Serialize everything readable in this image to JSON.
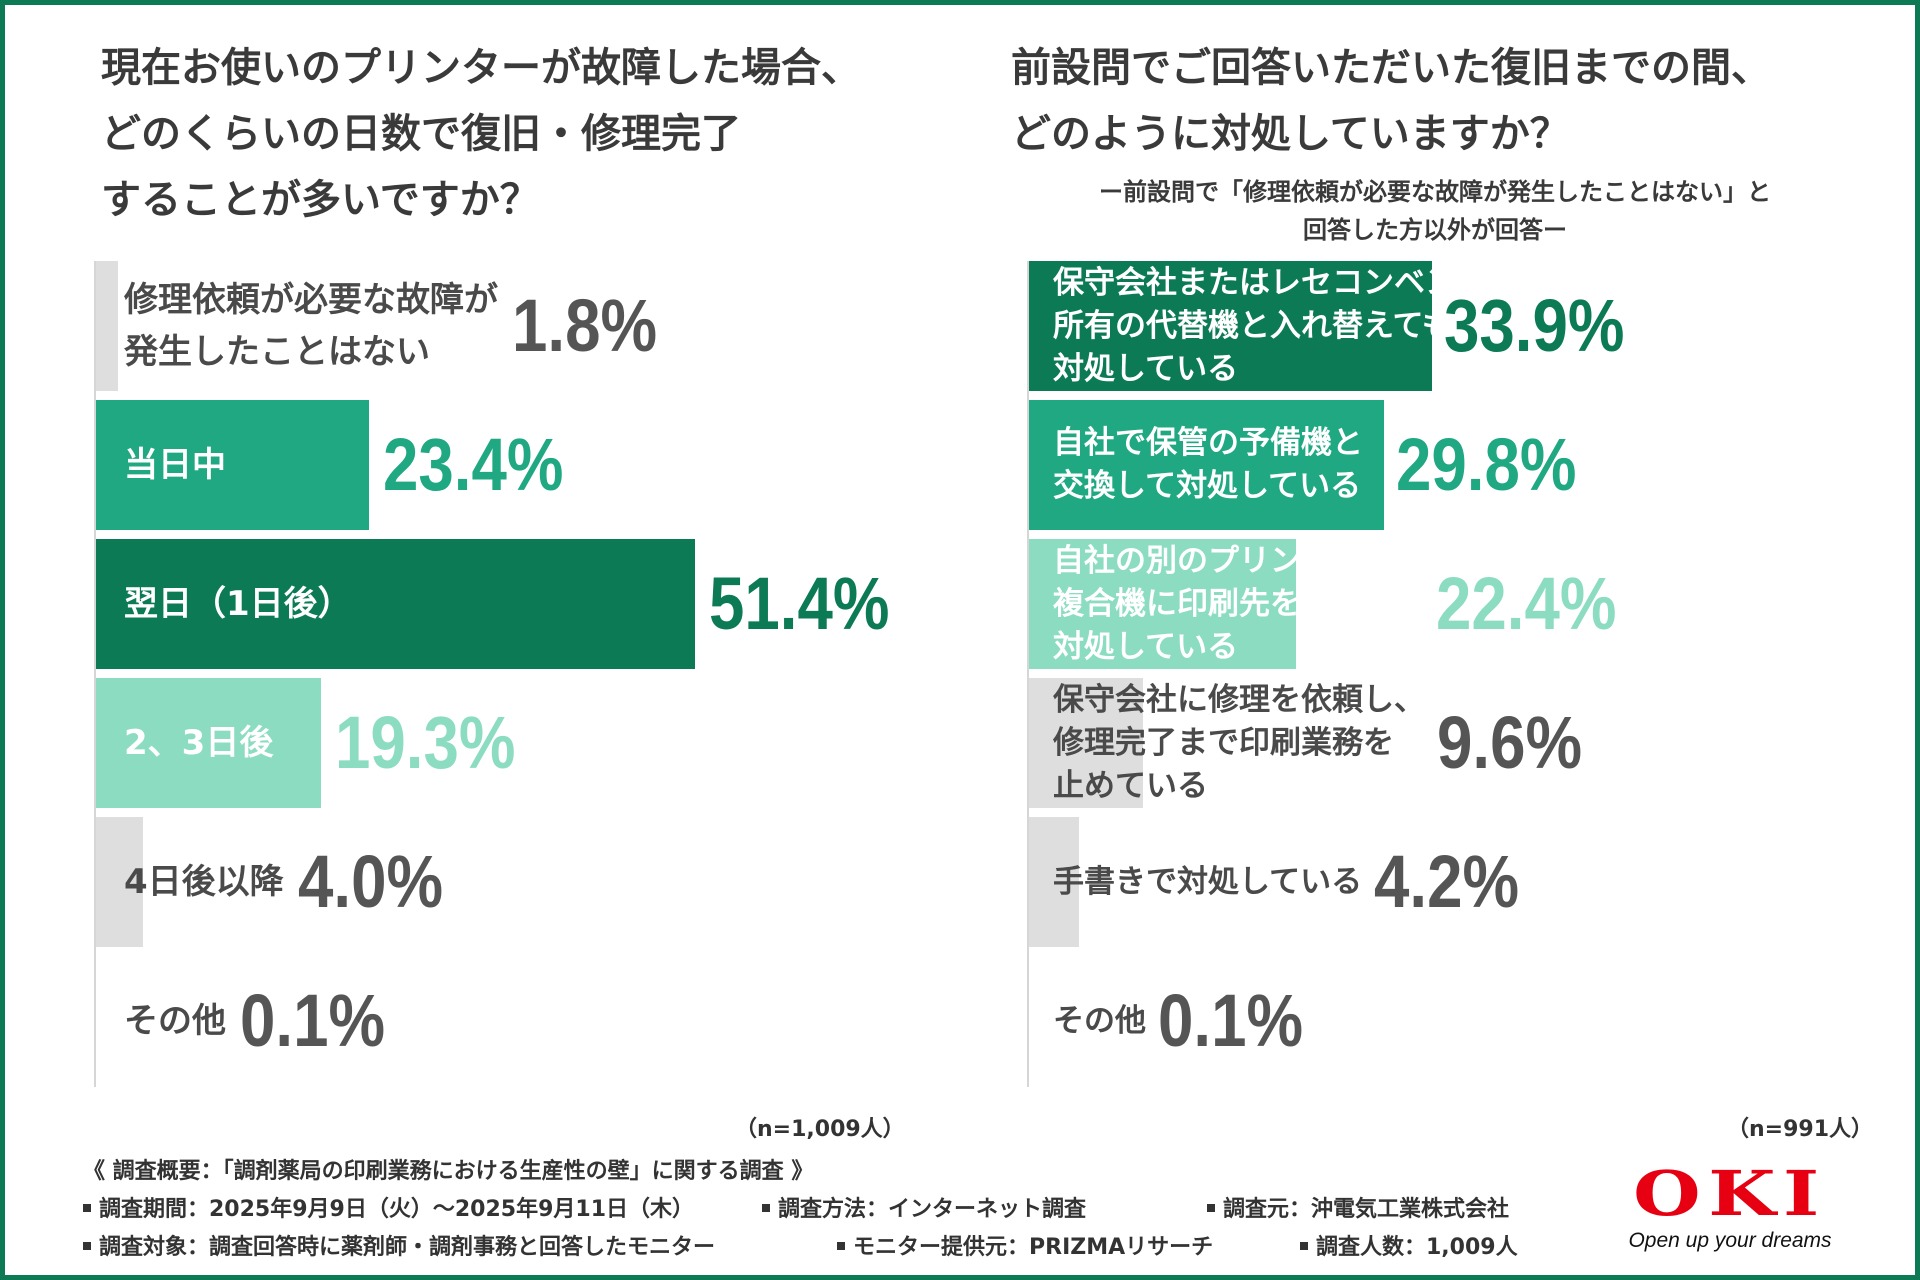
{
  "colors": {
    "dark_green": "#0b7a55",
    "mid_green": "#1fa882",
    "light_green": "#8cdcc2",
    "gray": "#dedede",
    "label_dark": "#4a4a4a",
    "pct_gray": "#555555",
    "logo_red": "#e60012"
  },
  "chart_data": [
    {
      "type": "bar",
      "orientation": "horizontal",
      "title": [
        "現在お使いのプリンターが故障した場合、",
        "どのくらいの日数で復旧・修理完了",
        "することが多いですか？"
      ],
      "categories": [
        [
          "修理依頼が必要な故障が",
          "発生したことはない"
        ],
        [
          "当日中"
        ],
        [
          "翌日（1日後）"
        ],
        [
          "2、3日後"
        ],
        [
          "4日後以降"
        ],
        [
          "その他"
        ]
      ],
      "values": [
        1.8,
        23.4,
        51.4,
        19.3,
        4.0,
        0.1
      ],
      "value_labels": [
        "1.8%",
        "23.4%",
        "51.4%",
        "19.3%",
        "4.0%",
        "0.1%"
      ],
      "styles": [
        "gray",
        "mid",
        "dark",
        "light",
        "gray",
        "gray"
      ],
      "xlim": [
        0,
        60
      ],
      "n": "（n=1,009人）"
    },
    {
      "type": "bar",
      "orientation": "horizontal",
      "title": [
        "前設問でご回答いただいた復旧までの間、",
        "どのように対処していますか？"
      ],
      "subtitle": [
        "ー前設問で「修理依頼が必要な故障が発生したことはない」と",
        "回答した方以外が回答ー"
      ],
      "categories": [
        [
          "保守会社またはレセコンベンダー",
          "所有の代替機と入れ替えてもらい",
          "対処している"
        ],
        [
          "自社で保管の予備機と",
          "交換して対処している"
        ],
        [
          "自社の別のプリンターや",
          "複合機に印刷先を変更して",
          "対処している"
        ],
        [
          "保守会社に修理を依頼し、",
          "修理完了まで印刷業務を",
          "止めている"
        ],
        [
          "手書きで対処している"
        ],
        [
          "その他"
        ]
      ],
      "values": [
        33.9,
        29.8,
        22.4,
        9.6,
        4.2,
        0.1
      ],
      "value_labels": [
        "33.9%",
        "29.8%",
        "22.4%",
        "9.6%",
        "4.2%",
        "0.1%"
      ],
      "styles": [
        "dark",
        "mid",
        "light",
        "gray",
        "gray",
        "gray"
      ],
      "xlim": [
        0,
        60
      ],
      "n": "（n=991人）"
    }
  ],
  "survey": {
    "header": "《 調査概要：「調剤薬局の印刷業務における生産性の壁」に関する調査 》",
    "period": "調査期間：2025年9月9日（火）～2025年9月11日（木）",
    "method": "調査方法：インターネット調査",
    "source": "調査元：沖電気工業株式会社",
    "target": "調査対象：調査回答時に薬剤師・調剤事務と回答したモニター",
    "provider": "モニター提供元：PRIZMAリサーチ",
    "count": "調査人数：1,009人"
  },
  "logo": {
    "mark": "OKI",
    "tagline": "Open up your dreams"
  }
}
